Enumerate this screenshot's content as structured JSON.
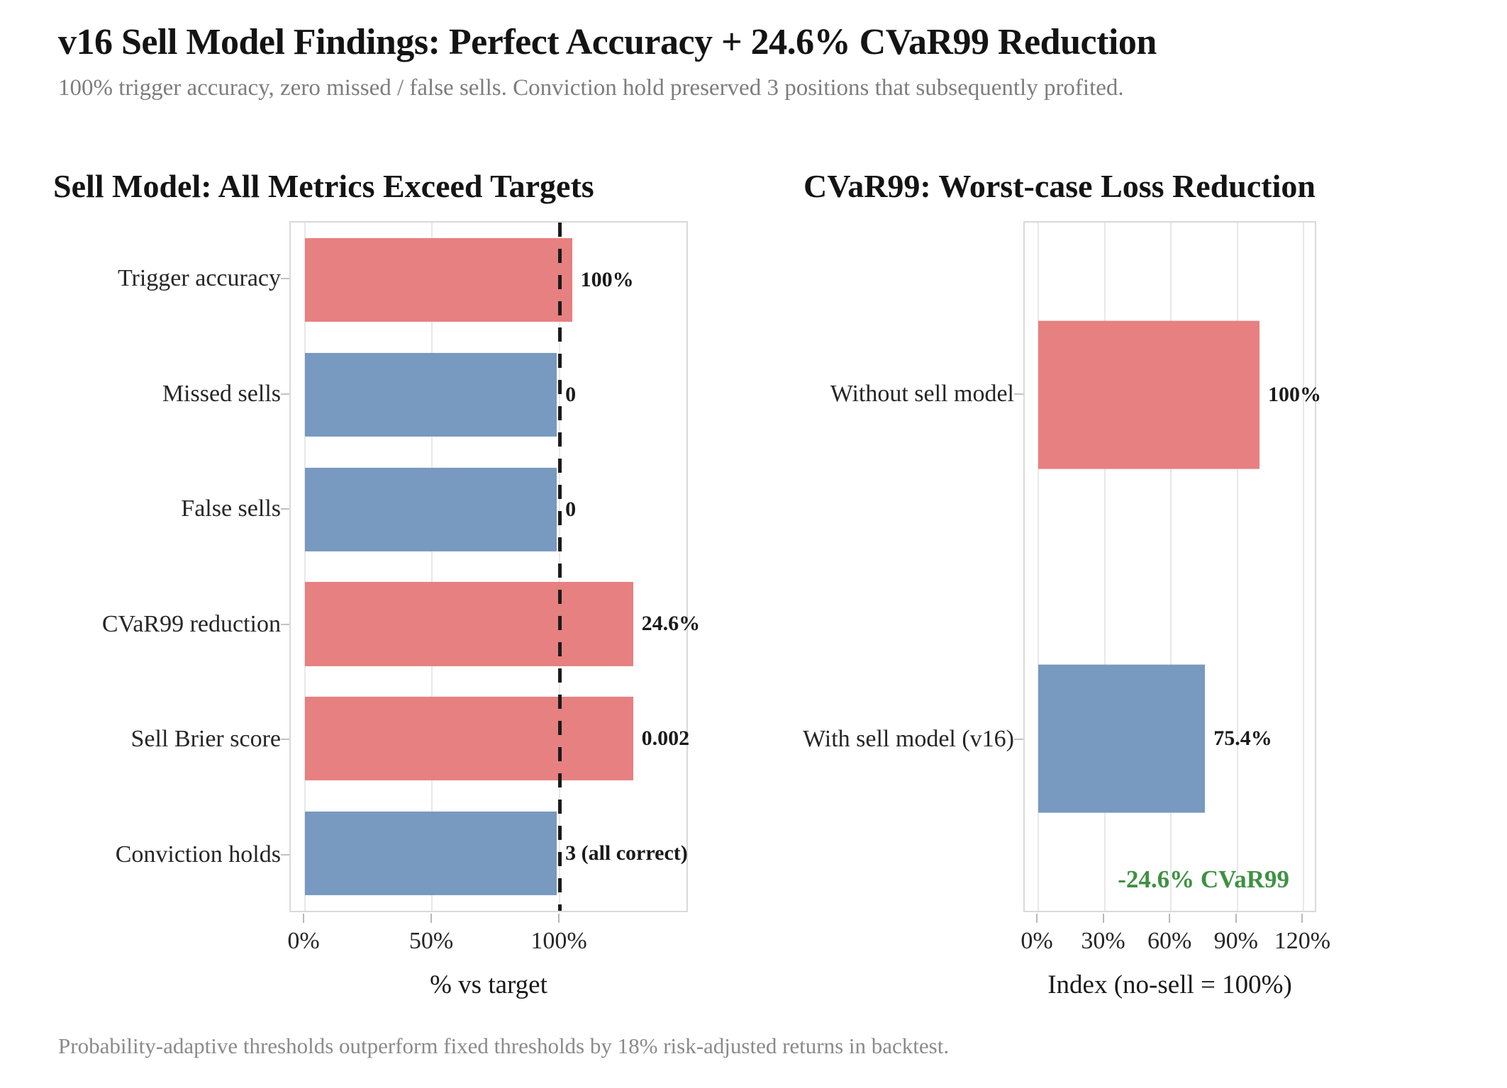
{
  "header": {
    "title": "v16 Sell Model Findings: Perfect Accuracy + 24.6% CVaR99 Reduction",
    "subtitle": "100% trigger accuracy, zero missed / false sells. Conviction hold preserved 3 positions that subsequently profited."
  },
  "footer": {
    "note": "Probability-adaptive thresholds outperform fixed thresholds by 18% risk-adjusted returns in backtest."
  },
  "colors": {
    "red": "#e78080",
    "blue": "#7899c0",
    "green_annotation": "#3f9142",
    "target_line": "#1b1b1b"
  },
  "chart_data": [
    {
      "type": "bar",
      "orientation": "horizontal",
      "title": "Sell Model: All Metrics Exceed Targets",
      "categories": [
        "Trigger accuracy",
        "Missed sells",
        "False sells",
        "CVaR99 reduction",
        "Sell Brier score",
        "Conviction holds"
      ],
      "values": [
        105,
        99,
        99,
        129,
        129,
        99
      ],
      "bar_labels": [
        "100%",
        "0",
        "0",
        "24.6%",
        "0.002",
        "3 (all correct)"
      ],
      "bar_colors": [
        "red",
        "blue",
        "blue",
        "red",
        "red",
        "blue"
      ],
      "xlabel": "% vs target",
      "xticks": [
        0,
        50,
        100
      ],
      "xtick_labels": [
        "0%",
        "50%",
        "100%"
      ],
      "xlim": [
        0,
        150
      ],
      "target_line": 100,
      "grid": true,
      "legend": false
    },
    {
      "type": "bar",
      "orientation": "horizontal",
      "title": "CVaR99: Worst-case Loss Reduction",
      "categories": [
        "Without sell model",
        "With sell model (v16)"
      ],
      "values": [
        100,
        75.4
      ],
      "bar_labels": [
        "100%",
        "75.4%"
      ],
      "bar_colors": [
        "red",
        "blue"
      ],
      "xlabel": "Index (no-sell = 100%)",
      "xticks": [
        0,
        30,
        60,
        90,
        120
      ],
      "xtick_labels": [
        "0%",
        "30%",
        "60%",
        "90%",
        "120%"
      ],
      "xlim": [
        0,
        125
      ],
      "target_line": null,
      "annotation": "-24.6% CVaR99",
      "grid": true,
      "legend": false
    }
  ]
}
